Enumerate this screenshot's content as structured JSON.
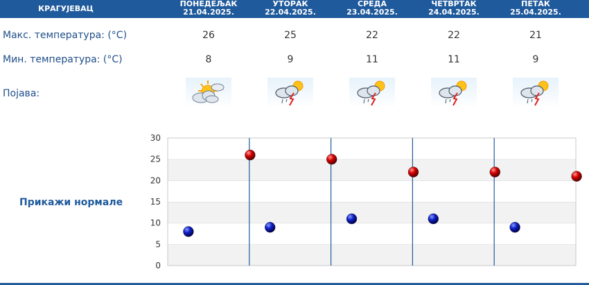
{
  "header": {
    "city": "КРАГУЈЕВАЦ",
    "days": [
      {
        "name": "ПОНЕДЕЉАК",
        "date": "21.04.2025."
      },
      {
        "name": "УТОРАК",
        "date": "22.04.2025."
      },
      {
        "name": "СРЕДА",
        "date": "23.04.2025."
      },
      {
        "name": "ЧЕТВРТАК",
        "date": "24.04.2025."
      },
      {
        "name": "ПЕТАК",
        "date": "25.04.2025."
      }
    ]
  },
  "rows": {
    "max_label": "Макс. температура: (°C)",
    "min_label": "Мин. температура: (°C)",
    "weather_label": "Појава:",
    "max_values": [
      "26",
      "25",
      "22",
      "22",
      "21"
    ],
    "min_values": [
      "8",
      "9",
      "11",
      "11",
      "9"
    ],
    "weather_icons": [
      "partly-cloudy-sun-icon",
      "thunderstorm-sun-icon",
      "thunderstorm-sun-icon",
      "thunderstorm-sun-icon",
      "thunderstorm-sun-icon"
    ]
  },
  "normals_link": "Прикажи нормале",
  "chart_data": {
    "type": "scatter",
    "categories": [
      "21.04.2025.",
      "22.04.2025.",
      "23.04.2025.",
      "24.04.2025.",
      "25.04.2025."
    ],
    "series": [
      {
        "values": [
          26,
          25,
          22,
          22,
          21
        ],
        "color": "#cc0000"
      },
      {
        "values": [
          8,
          9,
          11,
          11,
          9
        ],
        "color": "#0a1fb5"
      }
    ],
    "y_ticks": [
      "0",
      "5",
      "10",
      "15",
      "20",
      "25",
      "30"
    ],
    "ylim": [
      0,
      30
    ],
    "grid": true,
    "band_colors": [
      "#ffffff",
      "#f2f2f2"
    ],
    "divider_color": "#1f5a9c"
  }
}
